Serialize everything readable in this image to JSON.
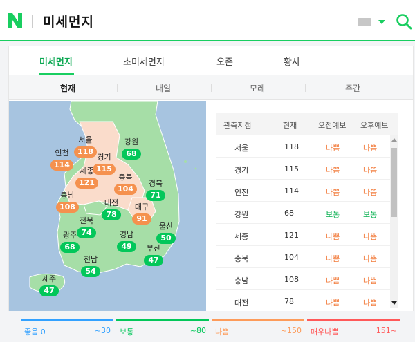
{
  "header": {
    "title": "미세먼지",
    "logo_letter": "N",
    "brand_color": "#19ce60"
  },
  "tabs": [
    {
      "label": "미세먼지",
      "active": true
    },
    {
      "label": "초미세먼지",
      "active": false
    },
    {
      "label": "오존",
      "active": false
    },
    {
      "label": "황사",
      "active": false
    }
  ],
  "subtabs": [
    {
      "label": "현재",
      "active": true
    },
    {
      "label": "내일",
      "active": false
    },
    {
      "label": "모레",
      "active": false
    },
    {
      "label": "주간",
      "active": false
    }
  ],
  "map": {
    "regions": [
      {
        "name": "서울",
        "value": "118",
        "status": "bad"
      },
      {
        "name": "강원",
        "value": "68",
        "status": "normal"
      },
      {
        "name": "인천",
        "value": "114",
        "status": "bad"
      },
      {
        "name": "경기",
        "value": "115",
        "status": "bad"
      },
      {
        "name": "세종",
        "value": "121",
        "status": "bad"
      },
      {
        "name": "충북",
        "value": "104",
        "status": "bad"
      },
      {
        "name": "경북",
        "value": "71",
        "status": "normal"
      },
      {
        "name": "충남",
        "value": "108",
        "status": "bad"
      },
      {
        "name": "대전",
        "value": "78",
        "status": "normal"
      },
      {
        "name": "대구",
        "value": "91",
        "status": "bad"
      },
      {
        "name": "전북",
        "value": "74",
        "status": "normal"
      },
      {
        "name": "울산",
        "value": "50",
        "status": "normal"
      },
      {
        "name": "광주",
        "value": "68",
        "status": "normal"
      },
      {
        "name": "경남",
        "value": "49",
        "status": "normal"
      },
      {
        "name": "부산",
        "value": "47",
        "status": "normal"
      },
      {
        "name": "전남",
        "value": "54",
        "status": "normal"
      },
      {
        "name": "제주",
        "value": "47",
        "status": "normal"
      }
    ]
  },
  "table": {
    "headers": [
      "관측지점",
      "현재",
      "오전예보",
      "오후예보"
    ],
    "rows": [
      {
        "station": "서울",
        "current": "118",
        "am": "나쁨",
        "pm": "나쁨",
        "am_status": "bad",
        "pm_status": "bad"
      },
      {
        "station": "경기",
        "current": "115",
        "am": "나쁨",
        "pm": "나쁨",
        "am_status": "bad",
        "pm_status": "bad"
      },
      {
        "station": "인천",
        "current": "114",
        "am": "나쁨",
        "pm": "나쁨",
        "am_status": "bad",
        "pm_status": "bad"
      },
      {
        "station": "강원",
        "current": "68",
        "am": "보통",
        "pm": "보통",
        "am_status": "normal",
        "pm_status": "normal"
      },
      {
        "station": "세종",
        "current": "121",
        "am": "나쁨",
        "pm": "나쁨",
        "am_status": "bad",
        "pm_status": "bad"
      },
      {
        "station": "충북",
        "current": "104",
        "am": "나쁨",
        "pm": "나쁨",
        "am_status": "bad",
        "pm_status": "bad"
      },
      {
        "station": "충남",
        "current": "108",
        "am": "나쁨",
        "pm": "나쁨",
        "am_status": "bad",
        "pm_status": "bad"
      },
      {
        "station": "대전",
        "current": "78",
        "am": "나쁨",
        "pm": "나쁨",
        "am_status": "bad",
        "pm_status": "bad"
      }
    ]
  },
  "legend": [
    {
      "label": "좋음 0",
      "range": "~30",
      "color": "#32a1ff"
    },
    {
      "label": "보통",
      "range": "~80",
      "color": "#03c75a"
    },
    {
      "label": "나쁨",
      "range": "~150",
      "color": "#fd9b5a"
    },
    {
      "label": "매우나쁨",
      "range": "151~",
      "color": "#ff5959"
    }
  ],
  "colors": {
    "good": "#32a1ff",
    "normal": "#03c75a",
    "bad": "#f5914e",
    "very_bad": "#ff5959",
    "bad_text": "#f27a3a",
    "normal_text": "#05b04f"
  }
}
